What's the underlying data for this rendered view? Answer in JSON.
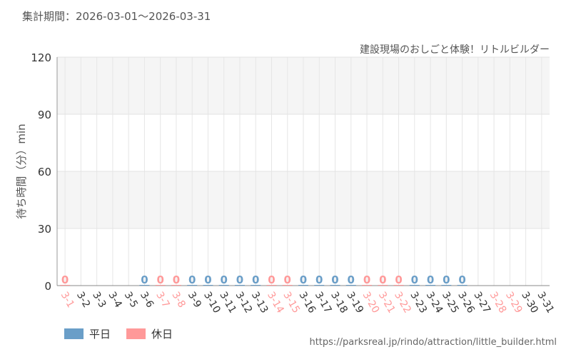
{
  "period_label": "集計期間：2026-03-01～2026-03-31",
  "attraction_name": "建設現場のおしごと体験！リトルビルダー",
  "source_url": "https://parksreal.jp/rindo/attraction/little_builder.html",
  "legend": [
    {
      "label": "平日",
      "color": "#6a9ec8"
    },
    {
      "label": "休日",
      "color": "#ff9999"
    }
  ],
  "chart_data": {
    "type": "bar",
    "ylabel": "待ち時間（分）min",
    "ylim": [
      0,
      120
    ],
    "yticks": [
      0,
      30,
      60,
      90,
      120
    ],
    "grid": true,
    "legend_position": "bottom-left",
    "colors": {
      "weekday": "#6a9ec8",
      "holiday": "#ff9999"
    },
    "categories": [
      "3-1",
      "3-2",
      "3-3",
      "3-4",
      "3-5",
      "3-6",
      "3-7",
      "3-8",
      "3-9",
      "3-10",
      "3-11",
      "3-12",
      "3-13",
      "3-14",
      "3-15",
      "3-16",
      "3-17",
      "3-18",
      "3-19",
      "3-20",
      "3-21",
      "3-22",
      "3-23",
      "3-24",
      "3-25",
      "3-26",
      "3-27",
      "3-28",
      "3-29",
      "3-30",
      "3-31"
    ],
    "day_type": [
      "holiday",
      "weekday",
      "weekday",
      "weekday",
      "weekday",
      "weekday",
      "holiday",
      "holiday",
      "weekday",
      "weekday",
      "weekday",
      "weekday",
      "weekday",
      "holiday",
      "holiday",
      "weekday",
      "weekday",
      "weekday",
      "weekday",
      "holiday",
      "holiday",
      "holiday",
      "weekday",
      "weekday",
      "weekday",
      "weekday",
      "weekday",
      "holiday",
      "holiday",
      "weekday",
      "weekday"
    ],
    "values": [
      0,
      null,
      null,
      null,
      null,
      0,
      0,
      0,
      0,
      0,
      0,
      0,
      0,
      0,
      0,
      0,
      0,
      0,
      0,
      0,
      0,
      0,
      0,
      0,
      0,
      0,
      null,
      null,
      null,
      null,
      null
    ],
    "value_labels": [
      "0",
      "",
      "",
      "",
      "",
      "0",
      "0",
      "0",
      "0",
      "0",
      "0",
      "0",
      "0",
      "0",
      "0",
      "0",
      "0",
      "0",
      "0",
      "0",
      "0",
      "0",
      "0",
      "0",
      "0",
      "0",
      "",
      "",
      "",
      "",
      ""
    ]
  }
}
